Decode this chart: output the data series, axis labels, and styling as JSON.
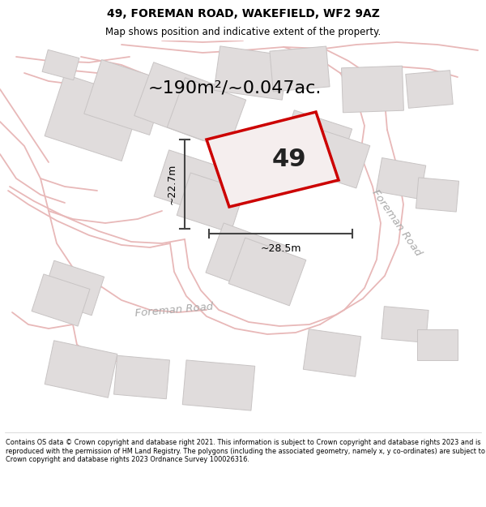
{
  "title": "49, FOREMAN ROAD, WAKEFIELD, WF2 9AZ",
  "subtitle": "Map shows position and indicative extent of the property.",
  "footer": "Contains OS data © Crown copyright and database right 2021. This information is subject to Crown copyright and database rights 2023 and is reproduced with the permission of HM Land Registry. The polygons (including the associated geometry, namely x, y co-ordinates) are subject to Crown copyright and database rights 2023 Ordnance Survey 100026316.",
  "area_label": "~190m²/~0.047ac.",
  "width_label": "~28.5m",
  "height_label": "~22.7m",
  "property_number": "49",
  "map_bg": "#f7f4f4",
  "road_color": "#e8b8b8",
  "building_fill": "#e0dcdc",
  "building_edge": "#c8c4c4",
  "property_fill": "#f5eeee",
  "property_edge": "#cc0000",
  "road_label_color": "#aaaaaa",
  "dim_line_color": "#444444",
  "title_fontsize": 10,
  "subtitle_fontsize": 8.5
}
